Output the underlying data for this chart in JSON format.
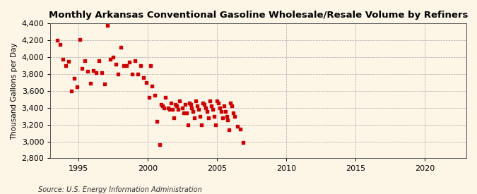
{
  "title": "Monthly Arkansas Conventional Gasoline Wholesale/Resale Volume by Refiners",
  "ylabel": "Thousand Gallons per Day",
  "source": "Source: U.S. Energy Information Administration",
  "background_color": "#fdf5e6",
  "marker_color": "#cc0000",
  "xlim": [
    1993.0,
    2023.0
  ],
  "ylim": [
    2800,
    4400
  ],
  "xticks": [
    1995,
    2000,
    2005,
    2010,
    2015,
    2020
  ],
  "yticks": [
    2800,
    3000,
    3200,
    3400,
    3600,
    3800,
    4000,
    4200,
    4400
  ],
  "data_x": [
    1993.5,
    1993.7,
    1993.9,
    1994.1,
    1994.3,
    1994.5,
    1994.7,
    1994.9,
    1995.1,
    1995.3,
    1995.5,
    1995.7,
    1995.9,
    1996.1,
    1996.3,
    1996.5,
    1996.7,
    1996.9,
    1997.1,
    1997.3,
    1997.5,
    1997.7,
    1997.9,
    1998.1,
    1998.3,
    1998.5,
    1998.7,
    1998.9,
    1999.1,
    1999.3,
    1999.5,
    1999.7,
    1999.9,
    2000.1,
    2000.2,
    2000.3,
    2000.5,
    2000.7,
    2000.9,
    2001.0,
    2001.1,
    2001.2,
    2001.3,
    2001.5,
    2001.6,
    2001.7,
    2001.8,
    2001.9,
    2002.0,
    2002.1,
    2002.2,
    2002.3,
    2002.5,
    2002.6,
    2002.7,
    2002.8,
    2002.9,
    2003.0,
    2003.1,
    2003.2,
    2003.3,
    2003.4,
    2003.5,
    2003.6,
    2003.7,
    2003.8,
    2003.9,
    2004.0,
    2004.1,
    2004.2,
    2004.3,
    2004.4,
    2004.5,
    2004.6,
    2004.7,
    2004.8,
    2004.9,
    2005.0,
    2005.1,
    2005.2,
    2005.3,
    2005.4,
    2005.5,
    2005.6,
    2005.7,
    2005.8,
    2005.9,
    2006.0,
    2006.1,
    2006.2,
    2006.3,
    2006.5,
    2006.7,
    2006.9
  ],
  "data_y": [
    4200,
    4150,
    3980,
    3900,
    3950,
    3600,
    3750,
    3650,
    4210,
    3870,
    3960,
    3830,
    3690,
    3840,
    3820,
    3960,
    3820,
    3680,
    4380,
    3980,
    4000,
    3920,
    3800,
    4120,
    3900,
    3900,
    3940,
    3800,
    3960,
    3800,
    3900,
    3760,
    3700,
    3520,
    3900,
    3660,
    3550,
    3240,
    2960,
    3440,
    3420,
    3400,
    3520,
    3400,
    3380,
    3460,
    3380,
    3280,
    3440,
    3420,
    3380,
    3480,
    3400,
    3340,
    3440,
    3340,
    3200,
    3460,
    3440,
    3400,
    3360,
    3280,
    3480,
    3420,
    3380,
    3300,
    3200,
    3460,
    3440,
    3400,
    3360,
    3280,
    3480,
    3420,
    3380,
    3300,
    3200,
    3480,
    3460,
    3400,
    3360,
    3280,
    3420,
    3360,
    3300,
    3260,
    3140,
    3460,
    3420,
    3340,
    3300,
    3180,
    3150,
    2990
  ]
}
